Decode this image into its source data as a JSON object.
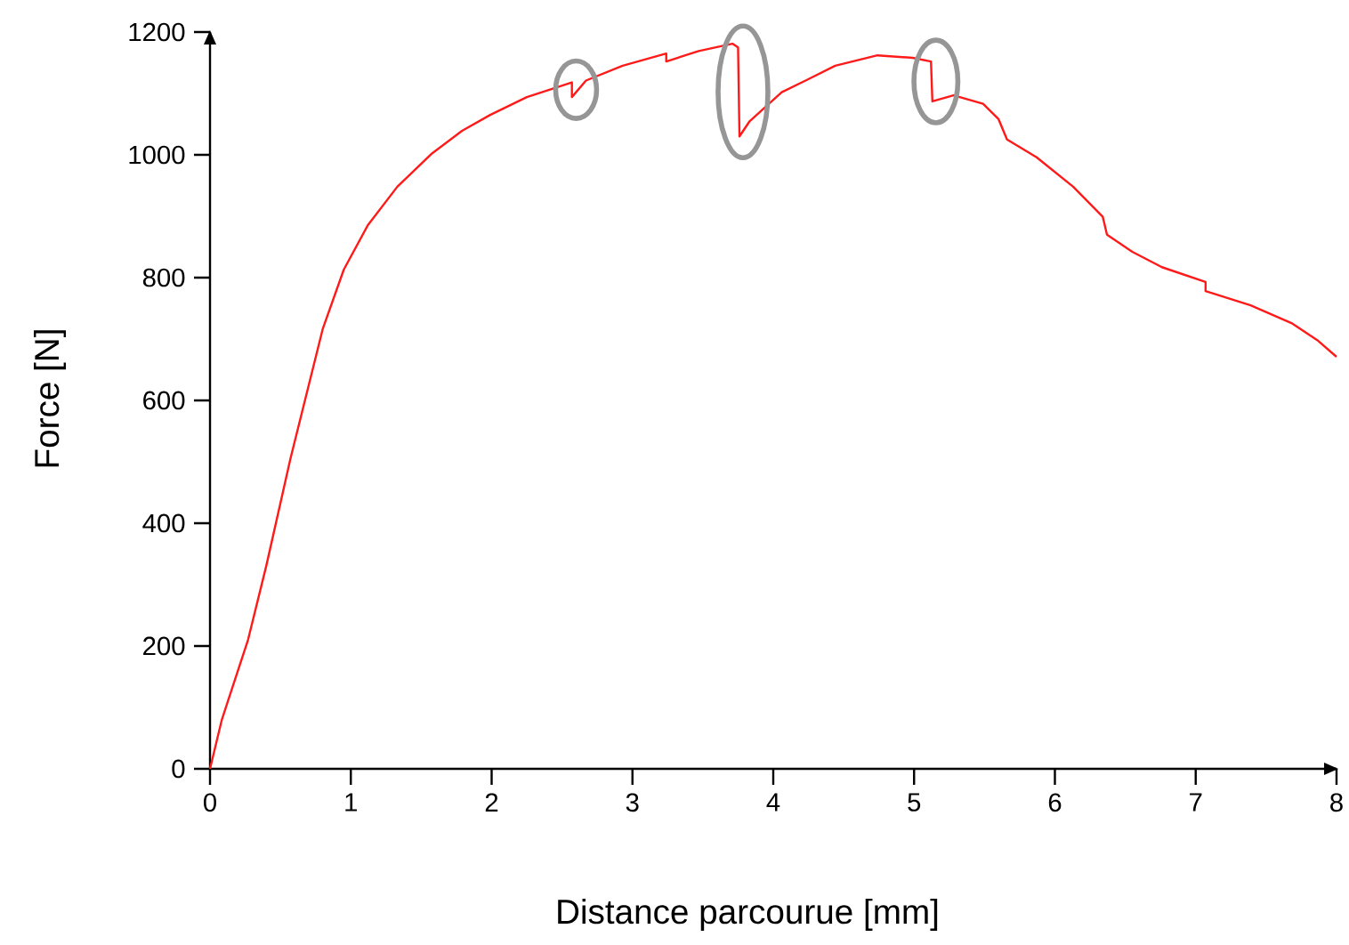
{
  "chart_data": {
    "type": "line",
    "xlabel": "Distance parcourue [mm]",
    "ylabel": "Force [N]",
    "xlim": [
      0,
      8
    ],
    "ylim": [
      0,
      1200
    ],
    "xticks": [
      0,
      1,
      2,
      3,
      4,
      5,
      6,
      7,
      8
    ],
    "yticks": [
      0,
      200,
      400,
      600,
      800,
      1000,
      1200
    ],
    "grid": false,
    "marker": "none",
    "line_style": "solid",
    "series": [
      {
        "color": "#ff1a1a",
        "x": [
          0,
          0.084,
          0.27,
          0.4,
          0.57,
          0.8,
          0.95,
          1.12,
          1.33,
          1.57,
          1.79,
          1.99,
          2.25,
          2.57,
          2.57,
          2.67,
          2.93,
          3.24,
          3.24,
          3.47,
          3.71,
          3.75,
          3.76,
          3.83,
          4.06,
          4.23,
          4.44,
          4.74,
          4.99,
          5.12,
          5.13,
          5.28,
          5.49,
          5.6,
          5.66,
          5.87,
          6.13,
          6.34,
          6.37,
          6.55,
          6.76,
          7.07,
          7.07,
          7.39,
          7.68,
          7.87,
          8.0
        ],
        "values": [
          0,
          80,
          210,
          331,
          504,
          716,
          813,
          885,
          948,
          1001,
          1039,
          1065,
          1094,
          1118,
          1094,
          1121,
          1145,
          1165,
          1152,
          1169,
          1181,
          1175,
          1030,
          1054,
          1102,
          1121,
          1145,
          1162,
          1158,
          1152,
          1087,
          1097,
          1083,
          1058,
          1025,
          996,
          948,
          899,
          870,
          842,
          817,
          793,
          778,
          755,
          726,
          697,
          671
        ]
      }
    ]
  }
}
